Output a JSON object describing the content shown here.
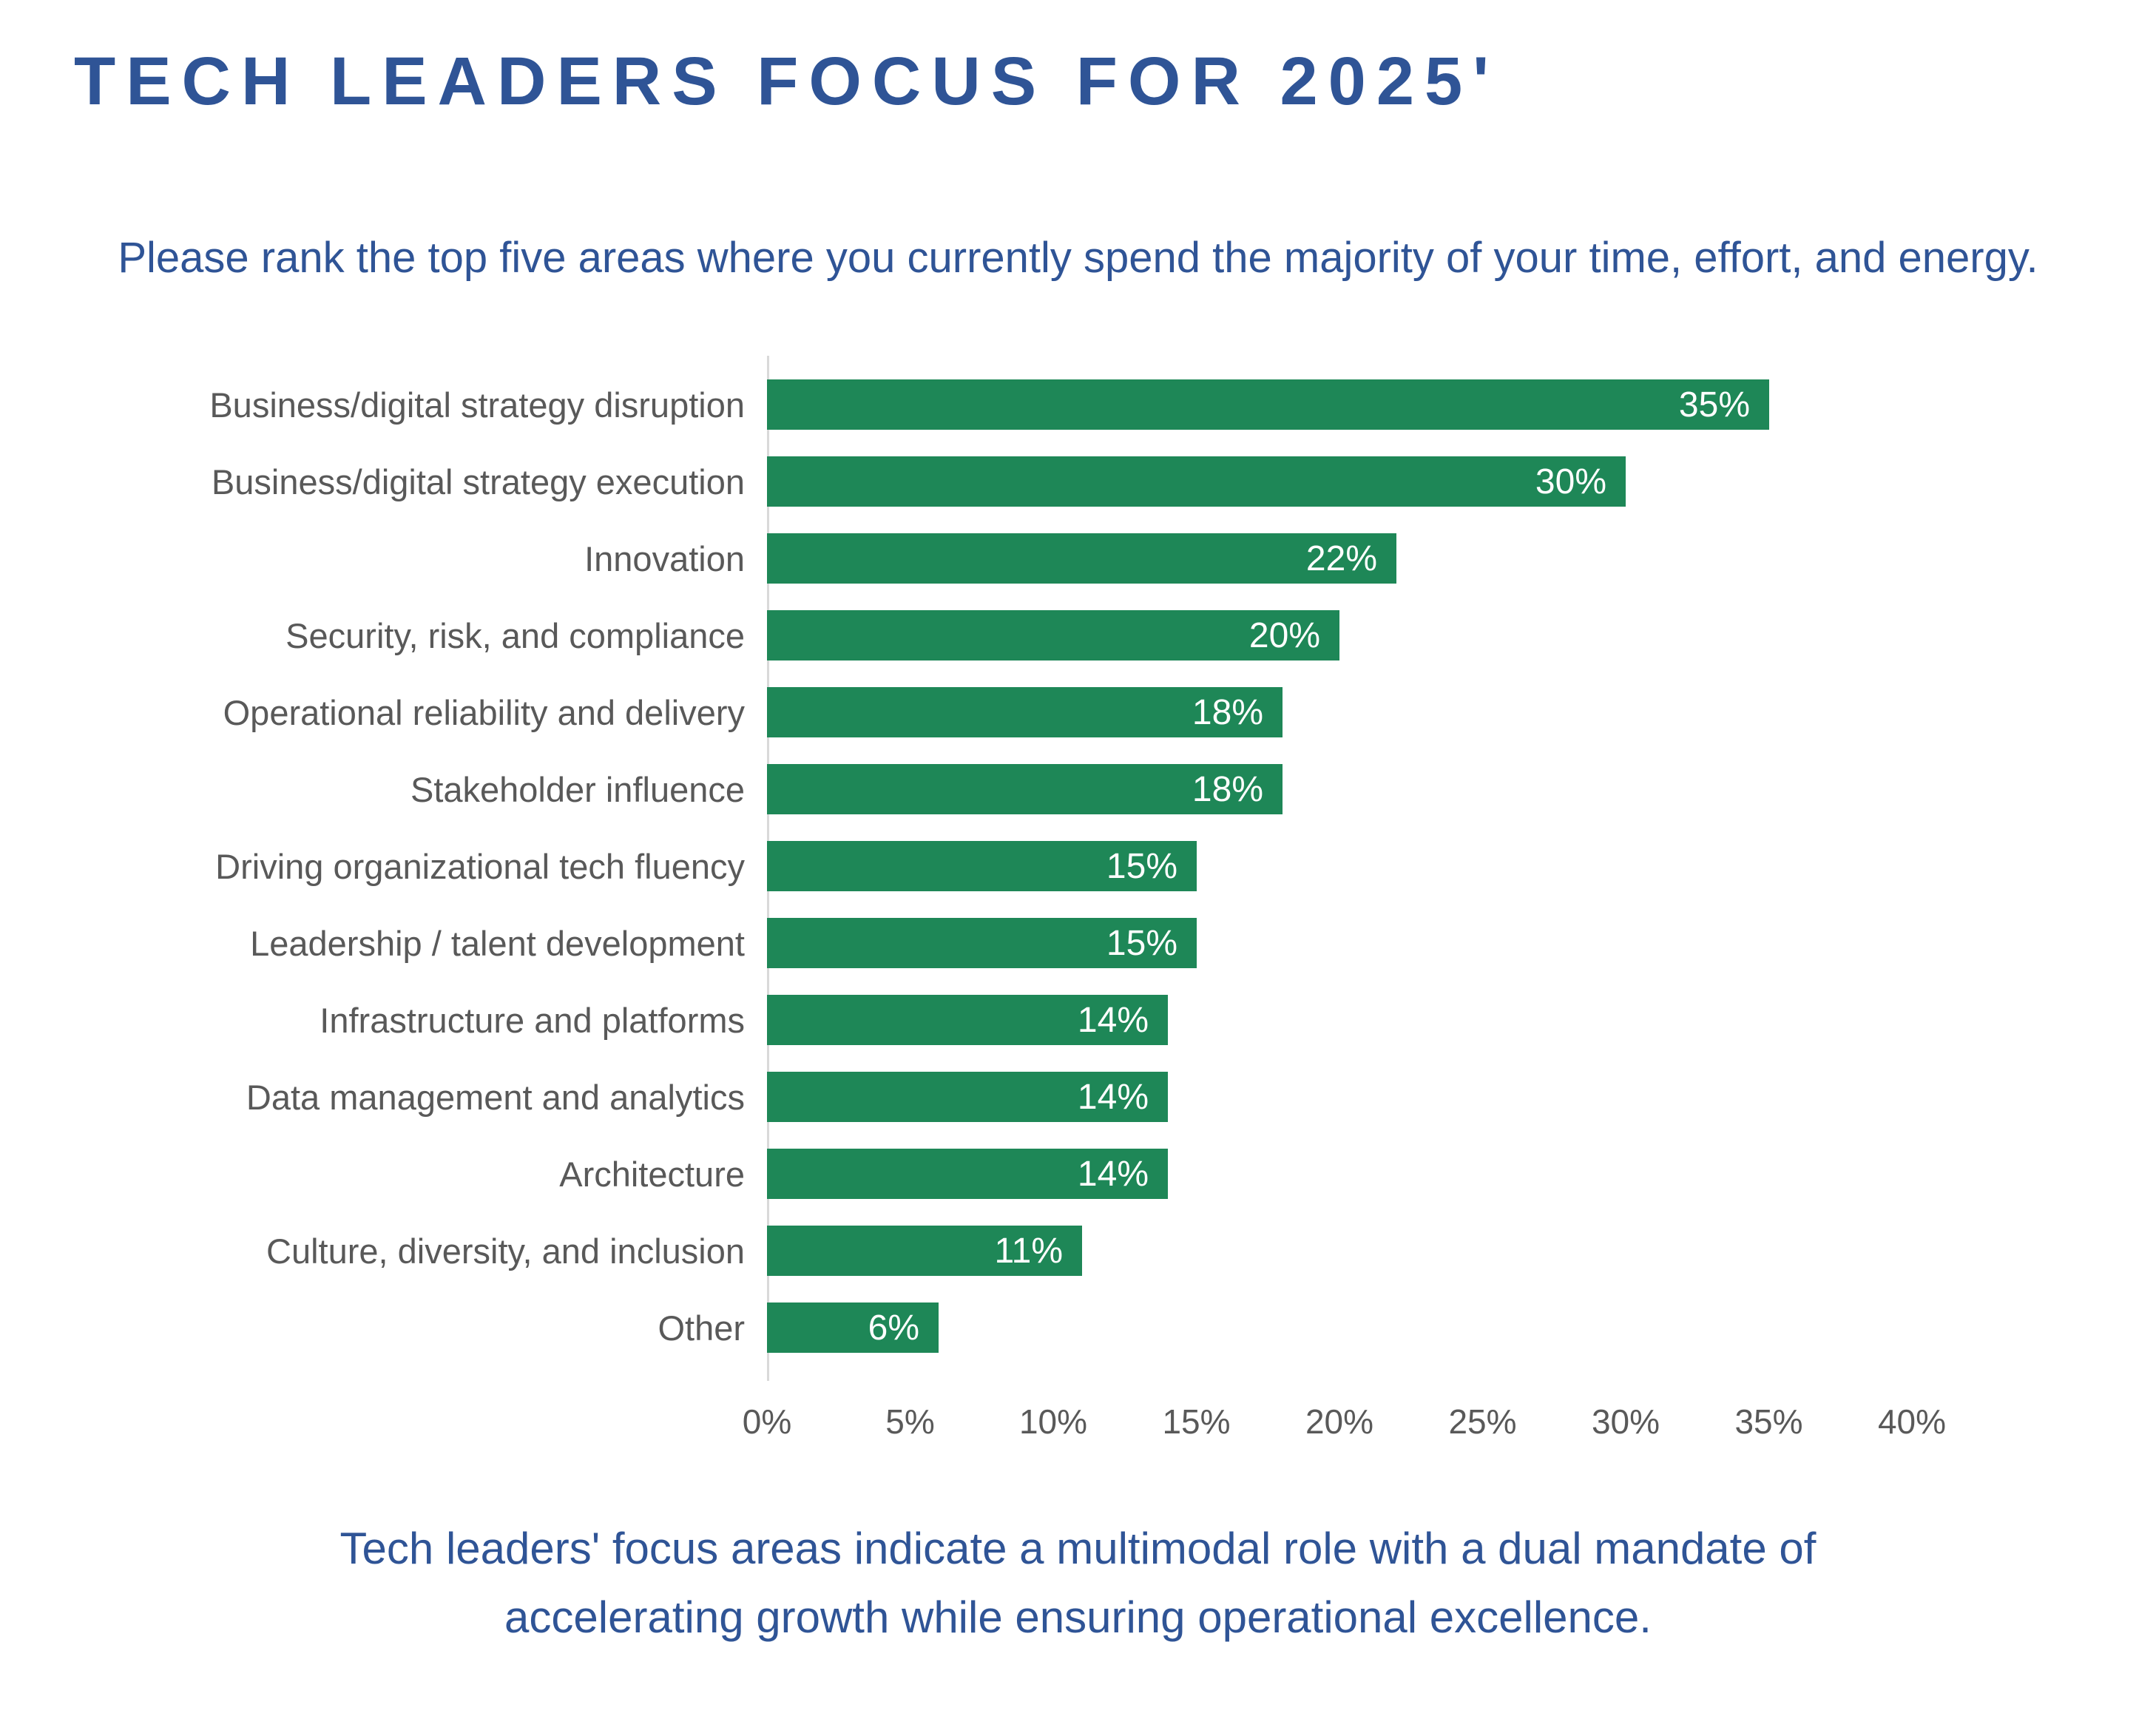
{
  "title": "TECH LEADERS FOCUS FOR 2025'",
  "subtitle": "Please rank the top five areas where you currently spend the majority of your time, effort, and energy.",
  "chart_data": {
    "type": "bar",
    "orientation": "horizontal",
    "title": "TECH LEADERS FOCUS FOR 2025'",
    "categories": [
      "Business/digital strategy disruption",
      "Business/digital strategy execution",
      "Innovation",
      "Security, risk, and compliance",
      "Operational reliability and delivery",
      "Stakeholder influence",
      "Driving organizational tech fluency",
      "Leadership / talent development",
      "Infrastructure and platforms",
      "Data management and analytics",
      "Architecture",
      "Culture, diversity, and inclusion",
      "Other"
    ],
    "values": [
      35,
      30,
      22,
      20,
      18,
      18,
      15,
      15,
      14,
      14,
      14,
      11,
      6
    ],
    "value_label_suffix": "%",
    "xlabel": "",
    "ylabel": "",
    "xlim": [
      0,
      40
    ],
    "x_ticks": [
      "0%",
      "5%",
      "10%",
      "15%",
      "20%",
      "25%",
      "30%",
      "35%",
      "40%"
    ],
    "grid": false,
    "legend": false,
    "bar_color": "#1E8757",
    "value_label_color": "#FFFFFF",
    "category_label_color": "#595959",
    "tick_label_color": "#595959",
    "axis_line_color": "#D9D9D9"
  },
  "footer": {
    "line1": "Tech leaders' focus areas indicate a multimodal role with a dual mandate of",
    "line2": "accelerating growth while ensuring operational excellence."
  },
  "colors": {
    "accent_blue": "#2F5496",
    "bar_green": "#1E8757",
    "label_gray": "#595959",
    "axis_line_gray": "#D9D9D9",
    "background": "#FFFFFF"
  }
}
